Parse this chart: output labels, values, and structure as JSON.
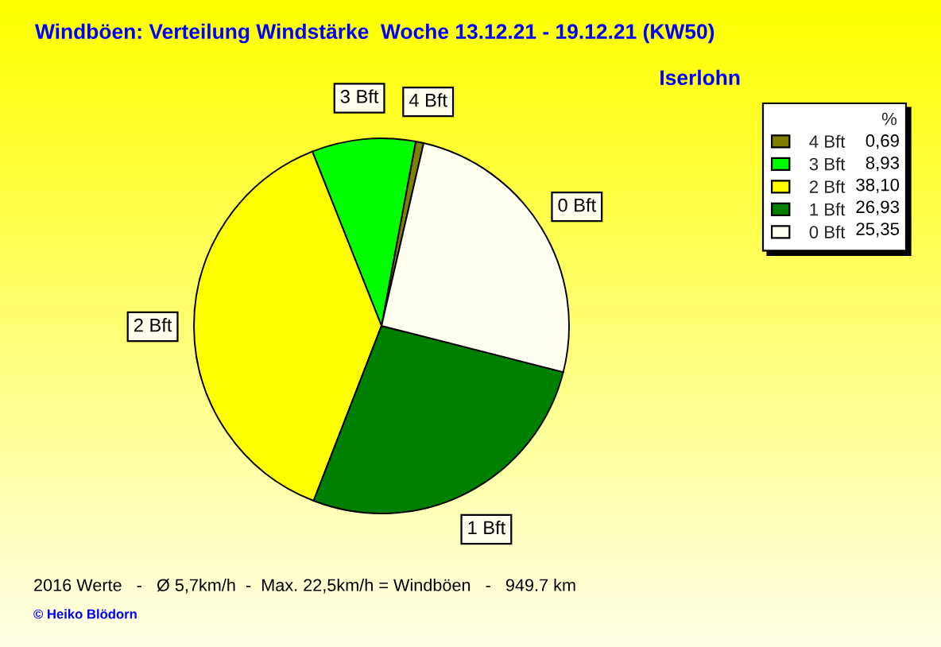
{
  "chart_data": {
    "type": "pie",
    "title": "Windböen: Verteilung Windstärke  Woche 13.12.21 - 19.12.21 (KW50)",
    "subtitle": "Iserlohn",
    "legend_title": "%",
    "categories": [
      "4 Bft",
      "3 Bft",
      "2 Bft",
      "1 Bft",
      "0 Bft"
    ],
    "values": [
      0.69,
      8.93,
      38.1,
      26.93,
      25.35
    ],
    "value_labels": [
      "0,69",
      "8,93",
      "38,10",
      "26,93",
      "25,35"
    ],
    "colors": [
      "#808000",
      "#00ff00",
      "#ffff00",
      "#008000",
      "#fffff0"
    ],
    "legend": "top right",
    "annotations": [
      "2016 Werte   -   Ø 5,7km/h  -  Max. 22,5km/h = Windböen   -   949.7 km",
      "© Heiko Blödorn"
    ]
  }
}
